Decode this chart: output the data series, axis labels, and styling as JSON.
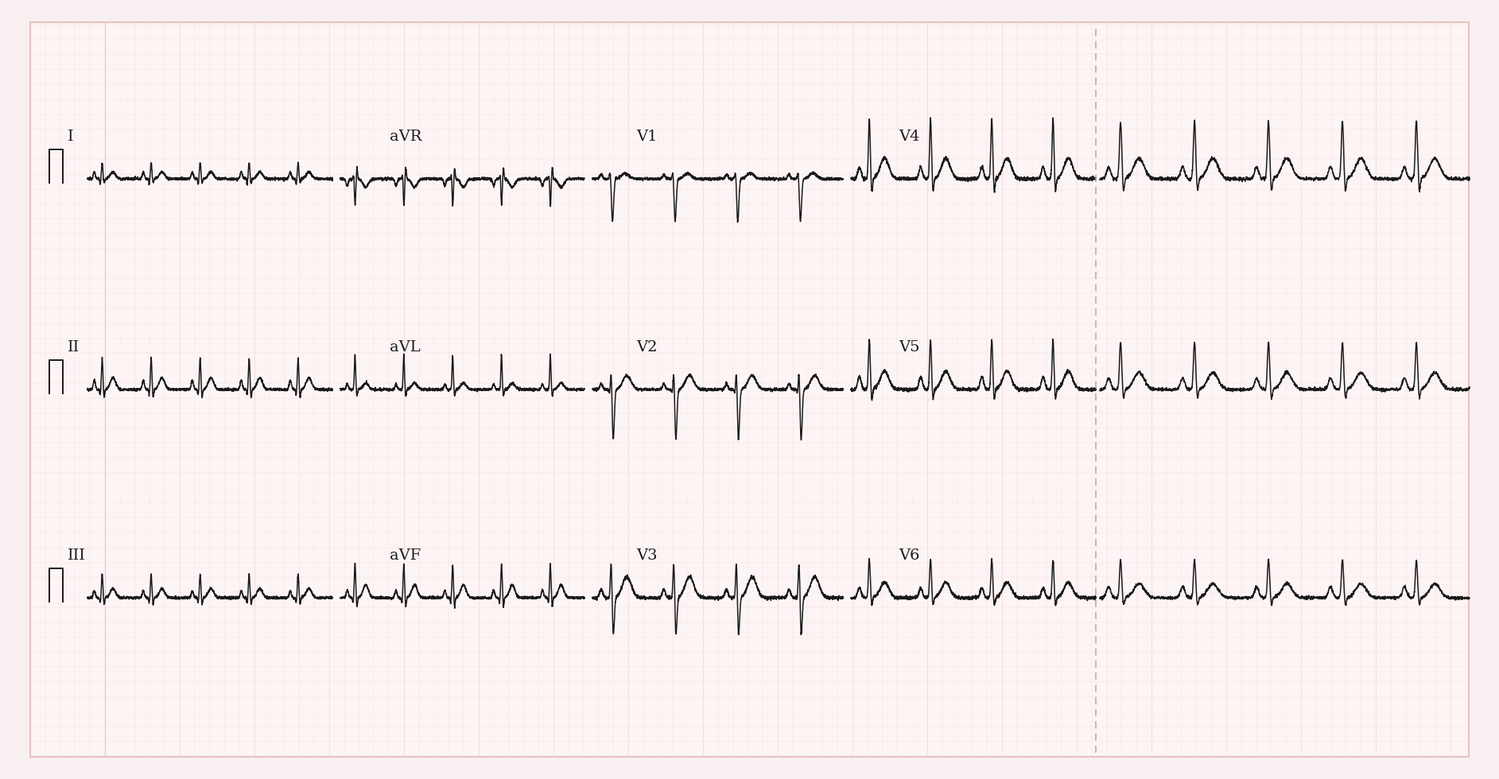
{
  "bg_color": "#fdf5f5",
  "bg_outer": "#f8f0f0",
  "grid_major_color": "#e8c0c0",
  "grid_minor_color": "#f5e0e0",
  "line_color": "#1a1a1a",
  "dashed_line_color": "#aaaaaa",
  "figsize": [
    18.85,
    9.8
  ],
  "dpi": 100,
  "labels": {
    "row0": [
      "I",
      "aVR",
      "V1",
      "V4"
    ],
    "row1": [
      "II",
      "aVL",
      "V2",
      "V5"
    ],
    "row2": [
      "III",
      "aVF",
      "V3",
      "V6"
    ]
  }
}
